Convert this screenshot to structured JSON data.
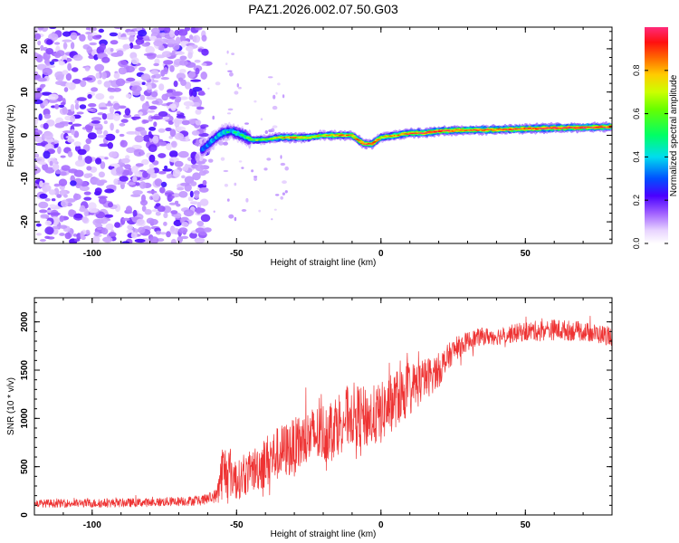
{
  "title": "PAZ1.2026.002.07.50.G03",
  "chart_data": [
    {
      "type": "heatmap",
      "xlabel": "Height of straight line (km)",
      "ylabel": "Frequency (Hz)",
      "xlim": [
        -120,
        80
      ],
      "ylim": [
        -25,
        25
      ],
      "xticks": [
        -100,
        -50,
        0,
        50
      ],
      "yticks": [
        -20,
        -10,
        0,
        10,
        20
      ],
      "colorbar": {
        "label": "Normalized spectral amplitude",
        "range": [
          0.0,
          1.0
        ],
        "ticks": [
          0.0,
          0.2,
          0.4,
          0.6,
          0.8
        ],
        "tick_labels": [
          "0.0",
          "0.2",
          "0.4",
          "0.6",
          "0.8"
        ]
      },
      "noise_region_x": [
        -120,
        -60
      ],
      "ridge": {
        "x": [
          -62,
          -58,
          -55,
          -52,
          -48,
          -45,
          -40,
          -35,
          -30,
          -25,
          -20,
          -15,
          -10,
          -6,
          -3,
          0,
          5,
          10,
          15,
          20,
          30,
          40,
          50,
          60,
          70,
          80
        ],
        "freq": [
          -3.5,
          -1,
          0.5,
          1,
          0,
          -1,
          -1,
          -0.5,
          -0.5,
          -0.5,
          0,
          0,
          0,
          -2,
          -2,
          -0.5,
          0,
          0.5,
          0.5,
          1,
          1.2,
          1.3,
          1.5,
          1.7,
          1.8,
          2
        ],
        "amplitude": [
          0.35,
          0.45,
          0.5,
          0.45,
          0.5,
          0.6,
          0.6,
          0.75,
          0.85,
          0.7,
          0.75,
          0.85,
          0.8,
          0.9,
          0.9,
          0.75,
          0.8,
          0.9,
          0.95,
          0.95,
          0.9,
          0.9,
          0.95,
          0.95,
          0.95,
          0.95
        ]
      }
    },
    {
      "type": "line",
      "xlabel": "Height of straight line (km)",
      "ylabel": "SNR (10 * v/v)",
      "xlim": [
        -120,
        80
      ],
      "ylim": [
        0,
        2250
      ],
      "xticks": [
        -100,
        -50,
        0,
        50
      ],
      "yticks": [
        0,
        500,
        1000,
        1500,
        2000
      ],
      "color": "#ee3333",
      "envelope": {
        "x": [
          -120,
          -100,
          -80,
          -62,
          -57,
          -55,
          -52,
          -50,
          -45,
          -40,
          -35,
          -30,
          -25,
          -20,
          -15,
          -10,
          -5,
          0,
          5,
          10,
          15,
          20,
          25,
          30,
          35,
          40,
          50,
          60,
          70,
          80
        ],
        "mean": [
          120,
          120,
          130,
          150,
          200,
          450,
          450,
          350,
          450,
          550,
          650,
          700,
          800,
          850,
          950,
          1050,
          1000,
          1050,
          1200,
          1300,
          1400,
          1500,
          1700,
          1800,
          1850,
          1850,
          1900,
          1920,
          1900,
          1850
        ],
        "amplitude": [
          40,
          45,
          45,
          50,
          70,
          300,
          280,
          200,
          220,
          280,
          280,
          300,
          300,
          320,
          330,
          330,
          320,
          320,
          300,
          280,
          220,
          180,
          120,
          100,
          90,
          90,
          100,
          110,
          100,
          100
        ]
      }
    }
  ]
}
